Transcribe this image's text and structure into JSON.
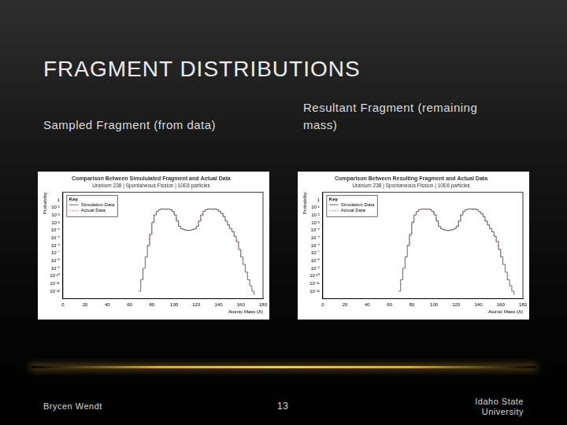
{
  "slide": {
    "title": "FRAGMENT DISTRIBUTIONS",
    "captions": [
      "Sampled Fragment (from data)",
      "Resultant Fragment (remaining mass)"
    ],
    "footer": {
      "author": "Brycen Wendt",
      "page": 13,
      "institution": "Idaho State University"
    }
  },
  "chart_data": [
    {
      "type": "line",
      "title": "Comparison Between Simululated Fragment and Actual Data",
      "subtitle": "Uranium 238 | Spontaneous Fission | 10E6 particles",
      "x_label": "Atomic Mass (A)",
      "y_label": "Probability",
      "x": [
        68,
        70,
        72,
        74,
        76,
        78,
        80,
        82,
        84,
        86,
        88,
        90,
        92,
        94,
        96,
        98,
        100,
        102,
        104,
        106,
        108,
        110,
        112,
        114,
        116,
        118,
        120,
        122,
        124,
        126,
        128,
        130,
        132,
        134,
        136,
        138,
        140,
        142,
        144,
        146,
        148,
        150,
        152,
        154,
        156,
        158,
        160,
        162,
        164,
        166,
        168,
        170,
        172
      ],
      "series": [
        {
          "name": "Simulation Data",
          "color": "#666666",
          "line_style": "solid",
          "values": [
            1e-12,
            3.16e-11,
            1e-09,
            3.16e-08,
            1e-06,
            3.16e-05,
            0.001,
            0.01,
            0.0316,
            0.05,
            0.063,
            0.063,
            0.056,
            0.063,
            0.05,
            0.0316,
            0.01,
            0.00158,
            0.000316,
            0.000158,
            0.000126,
            0.0001,
            0.0001,
            0.0001,
            0.000126,
            0.000158,
            0.000316,
            0.00158,
            0.01,
            0.0316,
            0.05,
            0.063,
            0.063,
            0.056,
            0.063,
            0.05,
            0.0316,
            0.0158,
            0.0063,
            0.00158,
            0.0005,
            0.000158,
            6.3e-05,
            1.58e-05,
            3.16e-06,
            3.16e-07,
            3.16e-08,
            3.16e-09,
            3.16e-10,
            3.16e-11,
            5e-12,
            1e-12,
            3.16e-13
          ]
        },
        {
          "name": "Actual Data",
          "color": "#e8706a",
          "line_style": "dashed",
          "values": [
            null,
            null,
            null,
            null,
            1e-06,
            2e-05,
            0.0012,
            0.012,
            0.03,
            0.05,
            0.06,
            0.065,
            0.055,
            0.06,
            0.05,
            0.03,
            0.011,
            0.0018,
            0.0003,
            0.00016,
            0.00012,
            0.0001,
            9e-05,
            0.0001,
            0.00012,
            0.00016,
            0.0003,
            0.0018,
            0.011,
            0.03,
            0.05,
            0.06,
            0.065,
            0.055,
            0.06,
            0.05,
            0.03,
            0.016,
            0.006,
            0.0016,
            0.0005,
            0.00016,
            6e-05,
            1.5e-05,
            3e-06,
            3e-07,
            3e-08,
            null,
            null,
            null,
            null,
            null,
            null
          ]
        }
      ],
      "xlim": [
        0,
        180
      ],
      "xticks": [
        0,
        20,
        40,
        60,
        80,
        100,
        120,
        140,
        160,
        180
      ],
      "ylim": [
        1e-13,
        10
      ],
      "yticks": [
        {
          "value": 1e-12,
          "label": "10⁻¹²"
        },
        {
          "value": 1e-11,
          "label": "10⁻¹¹"
        },
        {
          "value": 1e-10,
          "label": "10⁻¹⁰"
        },
        {
          "value": 1e-09,
          "label": "10⁻⁹"
        },
        {
          "value": 1e-08,
          "label": "10⁻⁸"
        },
        {
          "value": 1e-07,
          "label": "10⁻⁷"
        },
        {
          "value": 1e-06,
          "label": "10⁻⁶"
        },
        {
          "value": 1e-05,
          "label": "10⁻⁵"
        },
        {
          "value": 0.0001,
          "label": "10⁻⁴"
        },
        {
          "value": 0.001,
          "label": "10⁻³"
        },
        {
          "value": 0.01,
          "label": "10⁻²"
        },
        {
          "value": 0.1,
          "label": "10⁻¹"
        },
        1
      ],
      "log": "y",
      "grid": false,
      "legend": "upper left",
      "legend_title": "Key"
    },
    {
      "type": "line",
      "title": "Comparison Between Resulting Fragment and Actual Data",
      "subtitle": "Uranium 238 | Spontaneous Fission | 10E6 particles",
      "x_label": "Atomic Mass (A)",
      "y_label": "Probability",
      "x": [
        68,
        70,
        72,
        74,
        76,
        78,
        80,
        82,
        84,
        86,
        88,
        90,
        92,
        94,
        96,
        98,
        100,
        102,
        104,
        106,
        108,
        110,
        112,
        114,
        116,
        118,
        120,
        122,
        124,
        126,
        128,
        130,
        132,
        134,
        136,
        138,
        140,
        142,
        144,
        146,
        148,
        150,
        152,
        154,
        156,
        158,
        160,
        162,
        164,
        166,
        168,
        170,
        172
      ],
      "series": [
        {
          "name": "Simulation Data",
          "color": "#666666",
          "line_style": "solid",
          "values": [
            1e-12,
            3.16e-11,
            1e-09,
            3.16e-08,
            1e-06,
            3.16e-05,
            0.001,
            0.01,
            0.028,
            0.05,
            0.06,
            0.063,
            0.058,
            0.06,
            0.05,
            0.03,
            0.01,
            0.0016,
            0.00032,
            0.00016,
            0.00012,
            0.0001,
            9e-05,
            0.0001,
            0.00012,
            0.00016,
            0.00032,
            0.0016,
            0.01,
            0.03,
            0.05,
            0.06,
            0.063,
            0.058,
            0.06,
            0.05,
            0.028,
            0.0158,
            0.0063,
            0.00158,
            0.0005,
            0.000158,
            6.3e-05,
            1.58e-05,
            3.16e-06,
            3.16e-07,
            3.16e-08,
            3.16e-09,
            3.16e-10,
            3.16e-11,
            5e-12,
            1e-12,
            3.16e-13
          ]
        },
        {
          "name": "Actual Data",
          "color": "#e8706a",
          "line_style": "dashed",
          "values": [
            null,
            null,
            null,
            null,
            1e-06,
            2e-05,
            0.0012,
            0.012,
            0.03,
            0.05,
            0.06,
            0.065,
            0.055,
            0.06,
            0.05,
            0.03,
            0.011,
            0.0018,
            0.0003,
            0.00016,
            0.00012,
            0.0001,
            9e-05,
            0.0001,
            0.00012,
            0.00016,
            0.0003,
            0.0018,
            0.011,
            0.03,
            0.05,
            0.06,
            0.065,
            0.055,
            0.06,
            0.05,
            0.03,
            0.016,
            0.006,
            0.0016,
            0.0005,
            0.00016,
            6e-05,
            1.5e-05,
            3e-06,
            3e-07,
            3e-08,
            null,
            null,
            null,
            null,
            null,
            null
          ]
        }
      ],
      "xlim": [
        0,
        180
      ],
      "xticks": [
        0,
        20,
        40,
        60,
        80,
        100,
        120,
        140,
        160,
        180
      ],
      "ylim": [
        1e-13,
        10
      ],
      "yticks": [
        {
          "value": 1e-12,
          "label": "10⁻¹²"
        },
        {
          "value": 1e-11,
          "label": "10⁻¹¹"
        },
        {
          "value": 1e-10,
          "label": "10⁻¹⁰"
        },
        {
          "value": 1e-09,
          "label": "10⁻⁹"
        },
        {
          "value": 1e-08,
          "label": "10⁻⁸"
        },
        {
          "value": 1e-07,
          "label": "10⁻⁷"
        },
        {
          "value": 1e-06,
          "label": "10⁻⁶"
        },
        {
          "value": 1e-05,
          "label": "10⁻⁵"
        },
        {
          "value": 0.0001,
          "label": "10⁻⁴"
        },
        {
          "value": 0.001,
          "label": "10⁻³"
        },
        {
          "value": 0.01,
          "label": "10⁻²"
        },
        {
          "value": 0.1,
          "label": "10⁻¹"
        },
        1
      ],
      "log": "y",
      "grid": false,
      "legend": "upper left",
      "legend_title": "Key"
    }
  ]
}
